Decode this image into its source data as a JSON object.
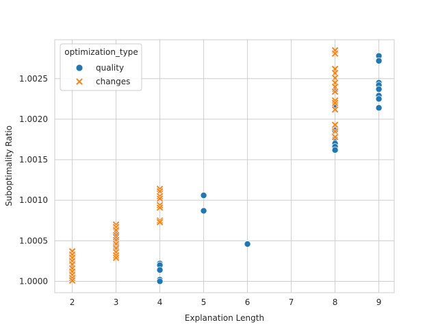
{
  "chart_data": {
    "type": "scatter",
    "title": "",
    "xlabel": "Explanation Length",
    "ylabel": "Suboptimality Ratio",
    "xlim": [
      1.6,
      9.35
    ],
    "ylim": [
      0.99986,
      1.00298
    ],
    "x_ticks": [
      2,
      3,
      4,
      5,
      6,
      7,
      8,
      9
    ],
    "x_tick_labels": [
      "2",
      "3",
      "4",
      "5",
      "6",
      "7",
      "8",
      "9"
    ],
    "y_ticks": [
      1.0,
      1.0005,
      1.001,
      1.0015,
      1.002,
      1.0025
    ],
    "y_tick_labels": [
      "1.0000",
      "1.0005",
      "1.0010",
      "1.0015",
      "1.0020",
      "1.0025"
    ],
    "grid": true,
    "legend": {
      "title": "optimization_type",
      "placement": "top-left",
      "entries": [
        "quality",
        "changes"
      ]
    },
    "series": [
      {
        "name": "quality",
        "marker": "circle",
        "color": "#1f77b4",
        "points": [
          [
            2,
            1.00032
          ],
          [
            2,
            1.00026
          ],
          [
            2,
            1.00018
          ],
          [
            2,
            1.00011
          ],
          [
            2,
            1.00004
          ],
          [
            3,
            1.00064
          ],
          [
            3,
            1.00058
          ],
          [
            3,
            1.00052
          ],
          [
            3,
            1.00046
          ],
          [
            3,
            1.0004
          ],
          [
            4,
            1.00022
          ],
          [
            4,
            1.0002
          ],
          [
            4,
            1.00014
          ],
          [
            4,
            1.00002
          ],
          [
            4,
            1.0
          ],
          [
            5,
            1.00106
          ],
          [
            5,
            1.00087
          ],
          [
            6,
            1.00046
          ],
          [
            8,
            1.00236
          ],
          [
            8,
            1.00215
          ],
          [
            8,
            1.0019
          ],
          [
            8,
            1.00186
          ],
          [
            8,
            1.00176
          ],
          [
            8,
            1.0017
          ],
          [
            8,
            1.00166
          ],
          [
            8,
            1.00162
          ],
          [
            9,
            1.00278
          ],
          [
            9,
            1.00272
          ],
          [
            9,
            1.00245
          ],
          [
            9,
            1.00242
          ],
          [
            9,
            1.00237
          ],
          [
            9,
            1.00229
          ],
          [
            9,
            1.00225
          ],
          [
            9,
            1.00214
          ]
        ]
      },
      {
        "name": "changes",
        "marker": "x",
        "color": "#ff7f0e",
        "points": [
          [
            2,
            1.00037
          ],
          [
            2,
            1.00033
          ],
          [
            2,
            1.00029
          ],
          [
            2,
            1.00025
          ],
          [
            2,
            1.00021
          ],
          [
            2,
            1.00016
          ],
          [
            2,
            1.00012
          ],
          [
            2,
            1.00008
          ],
          [
            2,
            1.00004
          ],
          [
            2,
            1.00001
          ],
          [
            3,
            1.0007
          ],
          [
            3,
            1.00067
          ],
          [
            3,
            1.00063
          ],
          [
            3,
            1.00057
          ],
          [
            3,
            1.00051
          ],
          [
            3,
            1.00046
          ],
          [
            3,
            1.00041
          ],
          [
            3,
            1.00036
          ],
          [
            3,
            1.00032
          ],
          [
            3,
            1.00029
          ],
          [
            4,
            1.00114
          ],
          [
            4,
            1.00111
          ],
          [
            4,
            1.00105
          ],
          [
            4,
            1.00102
          ],
          [
            4,
            1.00094
          ],
          [
            4,
            1.00091
          ],
          [
            4,
            1.00075
          ],
          [
            4,
            1.00073
          ],
          [
            8,
            1.00285
          ],
          [
            8,
            1.00281
          ],
          [
            8,
            1.00262
          ],
          [
            8,
            1.00257
          ],
          [
            8,
            1.00251
          ],
          [
            8,
            1.00245
          ],
          [
            8,
            1.0024
          ],
          [
            8,
            1.00234
          ],
          [
            8,
            1.00223
          ],
          [
            8,
            1.0022
          ],
          [
            8,
            1.00212
          ],
          [
            8,
            1.00193
          ],
          [
            8,
            1.00185
          ],
          [
            8,
            1.00178
          ]
        ]
      }
    ]
  }
}
